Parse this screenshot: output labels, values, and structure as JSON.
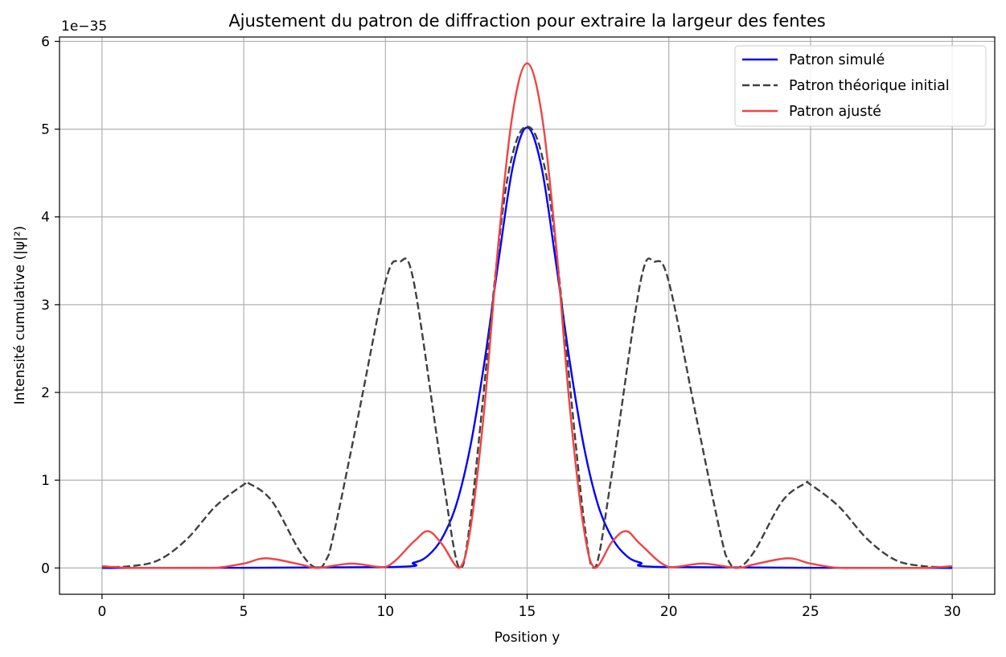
{
  "chart_data": {
    "type": "line",
    "title": "Ajustement du patron de diffraction pour extraire la largeur des fentes",
    "xlabel": "Position y",
    "ylabel": "Intensité cumulative (|ψ|²)",
    "y_offset_label": "1e−35",
    "xlim": [
      -1.5,
      31.5
    ],
    "ylim": [
      -0.3,
      6.05
    ],
    "x_ticks": [
      0,
      5,
      10,
      15,
      20,
      25,
      30
    ],
    "y_ticks": [
      0,
      1,
      2,
      3,
      4,
      5,
      6
    ],
    "grid": true,
    "legend_position": "top-right",
    "series": [
      {
        "name": "Patron simulé",
        "color": "#0000ff",
        "style": "solid",
        "x": [
          0,
          10,
          11,
          11.5,
          12,
          12.5,
          13,
          13.5,
          14,
          14.5,
          15,
          15.5,
          16,
          16.5,
          17,
          17.5,
          18,
          18.5,
          19,
          20,
          30
        ],
        "y": [
          0,
          0.01,
          0.06,
          0.14,
          0.34,
          0.72,
          1.39,
          2.36,
          3.52,
          4.58,
          5.02,
          4.58,
          3.52,
          2.36,
          1.39,
          0.72,
          0.34,
          0.14,
          0.06,
          0.01,
          0
        ]
      },
      {
        "name": "Patron théorique initial",
        "color": "#404040",
        "style": "dashed",
        "x": [
          0,
          1,
          2,
          3,
          4,
          5,
          5.2,
          6,
          7,
          7.6,
          8,
          9,
          10,
          10.5,
          11,
          12,
          12.6,
          13,
          14,
          14.5,
          15,
          15.5,
          16,
          17,
          17.4,
          18,
          19,
          19.5,
          20,
          21,
          22,
          22.4,
          23,
          24,
          24.8,
          25,
          26,
          27,
          28,
          29,
          30
        ],
        "y": [
          0.01,
          0.02,
          0.09,
          0.33,
          0.7,
          0.95,
          0.96,
          0.76,
          0.18,
          0.0,
          0.15,
          1.67,
          3.26,
          3.49,
          3.26,
          1.09,
          0.0,
          0.55,
          3.7,
          4.73,
          5.03,
          4.73,
          3.7,
          0.55,
          0.0,
          1.09,
          3.26,
          3.49,
          3.26,
          1.67,
          0.15,
          0.0,
          0.18,
          0.76,
          0.96,
          0.95,
          0.7,
          0.33,
          0.09,
          0.02,
          0.01
        ]
      },
      {
        "name": "Patron ajusté",
        "color": "#ef4444",
        "style": "solid",
        "x": [
          0,
          1,
          2,
          3,
          4,
          5,
          5.8,
          7,
          7.6,
          8.8,
          10,
          11,
          11.5,
          12,
          12.6,
          13,
          13.5,
          14,
          14.5,
          15,
          15.5,
          16,
          16.5,
          17,
          17.4,
          18,
          18.5,
          19,
          20,
          21.2,
          22.4,
          23,
          24.2,
          25,
          26,
          27,
          28,
          29,
          30
        ],
        "y": [
          0.02,
          0.0,
          0.0,
          0.0,
          0.0,
          0.05,
          0.11,
          0.04,
          0.0,
          0.05,
          0.01,
          0.3,
          0.42,
          0.27,
          0.0,
          0.45,
          1.85,
          3.75,
          5.2,
          5.75,
          5.2,
          3.75,
          1.85,
          0.45,
          0.0,
          0.3,
          0.42,
          0.27,
          0.01,
          0.05,
          0.0,
          0.04,
          0.11,
          0.05,
          0.0,
          0.0,
          0.0,
          0.0,
          0.02
        ]
      }
    ]
  }
}
